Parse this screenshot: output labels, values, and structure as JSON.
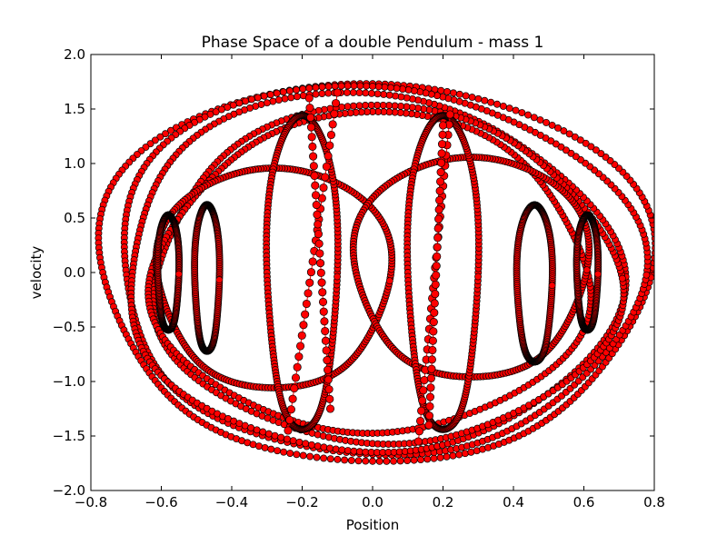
{
  "chart_data": {
    "type": "scatter",
    "title": "Phase Space of a double Pendulum - mass 1",
    "xlabel": "Position",
    "ylabel": "velocity",
    "xlim": [
      -0.8,
      0.8
    ],
    "ylim": [
      -2.0,
      2.0
    ],
    "xticks": [
      -0.8,
      -0.6,
      -0.4,
      -0.2,
      0.0,
      0.2,
      0.4,
      0.6,
      0.8
    ],
    "xtick_labels": [
      "−0.8",
      "−0.6",
      "−0.4",
      "−0.2",
      "0.0",
      "0.2",
      "0.4",
      "0.6",
      "0.8"
    ],
    "yticks": [
      -2.0,
      -1.5,
      -1.0,
      -0.5,
      0.0,
      0.5,
      1.0,
      1.5,
      2.0
    ],
    "ytick_labels": [
      "−2.0",
      "−1.5",
      "−1.0",
      "−0.5",
      "0.0",
      "0.5",
      "1.0",
      "1.5",
      "2.0"
    ],
    "grid": false,
    "marker_color": "#ff0000",
    "marker_edge_color": "#000000",
    "line_color": "#ff0000",
    "loops": [
      {
        "cx": 0.0,
        "cy": 0.0,
        "rx": 0.78,
        "ry": 1.8,
        "phase": 0.3
      },
      {
        "cx": 0.0,
        "cy": 0.02,
        "rx": 0.74,
        "ry": 1.72,
        "phase": 1.1
      },
      {
        "cx": -0.02,
        "cy": 0.0,
        "rx": 0.7,
        "ry": 1.62,
        "phase": 2.0
      },
      {
        "cx": 0.03,
        "cy": -0.02,
        "rx": 0.66,
        "ry": 1.5,
        "phase": 2.7
      },
      {
        "cx": 0.0,
        "cy": 0.0,
        "rx": 0.62,
        "ry": 1.42,
        "phase": 3.4
      },
      {
        "cx": -0.28,
        "cy": -0.05,
        "rx": 0.33,
        "ry": 1.05,
        "phase": 0.0
      },
      {
        "cx": 0.28,
        "cy": 0.05,
        "rx": 0.33,
        "ry": 1.05,
        "phase": 0.0
      },
      {
        "cx": -0.2,
        "cy": 0.0,
        "rx": 0.1,
        "ry": 1.5,
        "phase": 0.0
      },
      {
        "cx": 0.2,
        "cy": 0.0,
        "rx": 0.1,
        "ry": 1.5,
        "phase": 0.0
      },
      {
        "cx": -0.47,
        "cy": -0.05,
        "rx": 0.035,
        "ry": 0.7,
        "phase": 0.0
      },
      {
        "cx": 0.46,
        "cy": -0.1,
        "rx": 0.05,
        "ry": 0.75,
        "phase": 0.0
      },
      {
        "cx": -0.58,
        "cy": 0.0,
        "rx": 0.03,
        "ry": 0.55,
        "phase": 0.0
      },
      {
        "cx": 0.61,
        "cy": 0.0,
        "rx": 0.03,
        "ry": 0.55,
        "phase": 0.0
      }
    ],
    "traces": [
      {
        "x0": -0.24,
        "x1": -0.1,
        "ymin": -1.45,
        "ymax": 1.65
      },
      {
        "x0": -0.12,
        "x1": -0.18,
        "ymin": -1.25,
        "ymax": 1.6
      },
      {
        "x0": 0.13,
        "x1": 0.22,
        "ymin": -1.55,
        "ymax": 1.45
      },
      {
        "x0": 0.16,
        "x1": 0.2,
        "ymin": -1.4,
        "ymax": 1.35
      }
    ]
  }
}
